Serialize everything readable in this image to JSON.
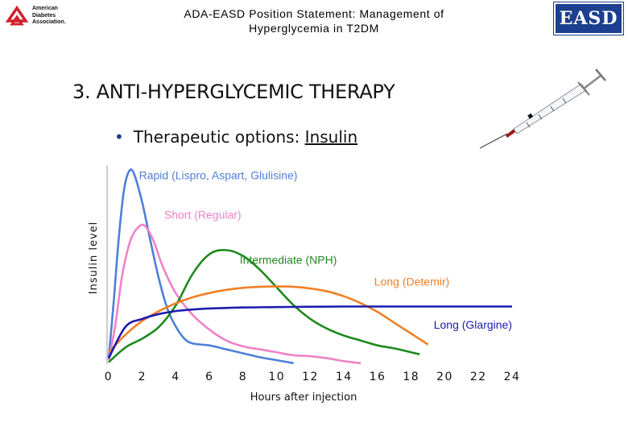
{
  "header": {
    "title_line1": "ADA-EASD Position Statement: Management of",
    "title_line2": "Hyperglycemia in T2DM",
    "ada_logo_text": [
      "American",
      "Diabetes",
      "Association."
    ],
    "easd_logo_text": "EASD"
  },
  "slide": {
    "section_title": "3. ANTI-HYPERGLYCEMIC THERAPY",
    "bullet_prefix": "Therapeutic options: ",
    "bullet_underlined": "Insulin"
  },
  "colors": {
    "rapid": "#4f7fd8",
    "short": "#ee82c8",
    "intermediate": "#1e8a1e",
    "long_detemir": "#f07f24",
    "long_glargine": "#1c1cb0",
    "easd_brand": "#1c3f8f",
    "ada_red": "#d0202e"
  },
  "chart_data": {
    "type": "line",
    "xlabel": "Hours after injection",
    "ylabel": "Insulin level",
    "xlim": [
      0,
      24
    ],
    "ylim": [
      0,
      10
    ],
    "x_ticks": [
      "0",
      "2",
      "4",
      "6",
      "8",
      "10",
      "12",
      "14",
      "16",
      "18",
      "20",
      "22",
      "24"
    ],
    "series": [
      {
        "name": "Rapid (Lispro, Aspart, Glulisine)",
        "color_key": "rapid",
        "label_x": 1.8,
        "label_y": 9.4,
        "points": [
          [
            0,
            0.3
          ],
          [
            0.3,
            3.2
          ],
          [
            0.6,
            6.4
          ],
          [
            0.9,
            8.8
          ],
          [
            1.2,
            9.8
          ],
          [
            1.5,
            9.7
          ],
          [
            2,
            8.2
          ],
          [
            2.5,
            6.2
          ],
          [
            3,
            4.3
          ],
          [
            3.5,
            2.8
          ],
          [
            4,
            1.9
          ],
          [
            4.5,
            1.3
          ],
          [
            5,
            1.05
          ],
          [
            6,
            0.95
          ],
          [
            7,
            0.75
          ],
          [
            8,
            0.55
          ],
          [
            9,
            0.35
          ],
          [
            10,
            0.2
          ],
          [
            11,
            0.05
          ]
        ]
      },
      {
        "name": "Short (Regular)",
        "color_key": "short",
        "label_x": 3.3,
        "label_y": 7.4,
        "points": [
          [
            0,
            0.2
          ],
          [
            0.4,
            2
          ],
          [
            0.8,
            4.5
          ],
          [
            1.3,
            6.3
          ],
          [
            1.8,
            7.0
          ],
          [
            2.2,
            7.0
          ],
          [
            2.7,
            6.2
          ],
          [
            3.2,
            5.0
          ],
          [
            4,
            3.6
          ],
          [
            5,
            2.5
          ],
          [
            6,
            1.75
          ],
          [
            7,
            1.2
          ],
          [
            8,
            0.9
          ],
          [
            9,
            0.75
          ],
          [
            10,
            0.6
          ],
          [
            11,
            0.45
          ],
          [
            12,
            0.4
          ],
          [
            13,
            0.3
          ],
          [
            14,
            0.15
          ],
          [
            15,
            0.05
          ]
        ]
      },
      {
        "name": "Intermediate (NPH)",
        "color_key": "intermediate",
        "label_x": 7.8,
        "label_y": 5.1,
        "points": [
          [
            0,
            0.1
          ],
          [
            1,
            0.85
          ],
          [
            2,
            1.3
          ],
          [
            3,
            1.9
          ],
          [
            4,
            3.0
          ],
          [
            5,
            4.6
          ],
          [
            6,
            5.6
          ],
          [
            7,
            5.8
          ],
          [
            8,
            5.5
          ],
          [
            9,
            4.8
          ],
          [
            10,
            3.9
          ],
          [
            11,
            3.0
          ],
          [
            12,
            2.3
          ],
          [
            13,
            1.8
          ],
          [
            14,
            1.45
          ],
          [
            15,
            1.2
          ],
          [
            16,
            0.95
          ],
          [
            17,
            0.8
          ],
          [
            18,
            0.6
          ],
          [
            18.5,
            0.5
          ]
        ]
      },
      {
        "name": "Long (Detemir)",
        "color_key": "long_detemir",
        "label_x": 15.8,
        "label_y": 4.0,
        "points": [
          [
            0,
            0.6
          ],
          [
            1,
            1.5
          ],
          [
            2,
            2.2
          ],
          [
            3,
            2.7
          ],
          [
            4,
            3.1
          ],
          [
            5,
            3.4
          ],
          [
            6,
            3.62
          ],
          [
            7,
            3.78
          ],
          [
            8,
            3.88
          ],
          [
            9,
            3.93
          ],
          [
            10,
            3.95
          ],
          [
            11,
            3.93
          ],
          [
            12,
            3.85
          ],
          [
            13,
            3.7
          ],
          [
            14,
            3.45
          ],
          [
            15,
            3.1
          ],
          [
            16,
            2.65
          ],
          [
            17,
            2.1
          ],
          [
            18,
            1.55
          ],
          [
            19,
            1.0
          ]
        ]
      },
      {
        "name": "Long (Glargine)",
        "color_key": "long_glargine",
        "label_x": 24.0,
        "label_y": 1.8,
        "points": [
          [
            0,
            0.3
          ],
          [
            1,
            1.9
          ],
          [
            2,
            2.3
          ],
          [
            3,
            2.55
          ],
          [
            4,
            2.7
          ],
          [
            5,
            2.78
          ],
          [
            6,
            2.83
          ],
          [
            8,
            2.88
          ],
          [
            10,
            2.9
          ],
          [
            12,
            2.92
          ],
          [
            14,
            2.93
          ],
          [
            16,
            2.93
          ],
          [
            18,
            2.93
          ],
          [
            20,
            2.93
          ],
          [
            22,
            2.93
          ],
          [
            24,
            2.93
          ]
        ]
      }
    ],
    "grid": false,
    "legend": "inline labels"
  }
}
